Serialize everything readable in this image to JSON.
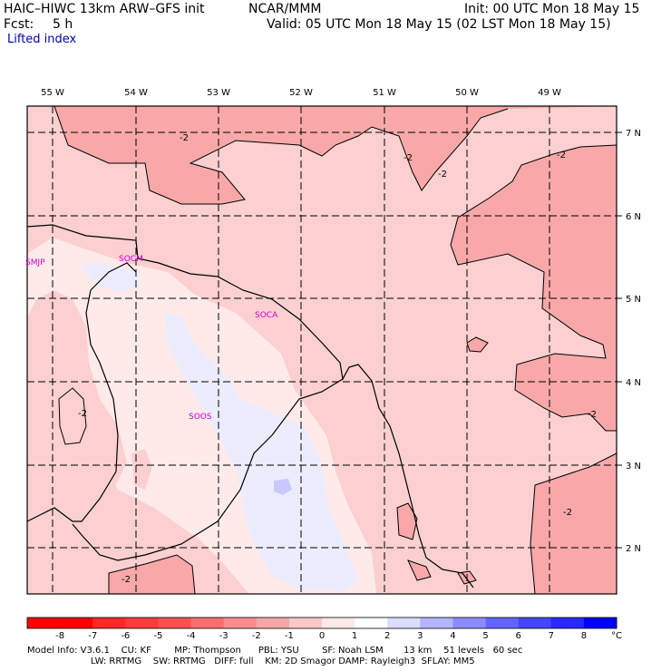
{
  "header": {
    "model": "HAIC–HIWC 13km ARW–GFS init",
    "center": "NCAR/MMM",
    "init": "Init: 00 UTC Mon 18 May 15",
    "fcst_label": "Fcst:",
    "fcst_value": "5 h",
    "valid": "Valid: 05 UTC Mon 18 May 15 (02 LST Mon 18 May 15)",
    "field": "Lifted index"
  },
  "map": {
    "lon_labels": [
      "55 W",
      "54 W",
      "53 W",
      "52 W",
      "51 W",
      "50 W",
      "49 W"
    ],
    "lat_labels": [
      "7 N",
      "6 N",
      "5 N",
      "4 N",
      "3 N",
      "2 N"
    ],
    "stations": [
      "SMJP",
      "SOCM",
      "SOCA",
      "SOOS"
    ],
    "contour_label": "-2"
  },
  "colorbar": {
    "labels": [
      "-8",
      "-7",
      "-6",
      "-5",
      "-4",
      "-3",
      "-2",
      "-1",
      "0",
      "1",
      "2",
      "3",
      "4",
      "5",
      "6",
      "7",
      "8"
    ],
    "unit": "°C",
    "colors": [
      "#ff0000",
      "#ff2828",
      "#ff3c3c",
      "#ff5050",
      "#fa6e6e",
      "#f88c8c",
      "#f6a6a6",
      "#fcc8c8",
      "#ffeaea",
      "#ffffff",
      "#dcdcff",
      "#b4b4ff",
      "#8c8cff",
      "#6464ff",
      "#4646ff",
      "#2828ff",
      "#0000ff"
    ]
  },
  "footer": {
    "line1": "Model Info: V3.6.1    CU: KF        MP: Thompson      PBL: YSU        SF: Noah LSM       13 km    51 levels   60 sec",
    "line2": "                      LW: RRTMG    SW: RRTMG   DIFF: full    KM: 2D Smagor DAMP: Rayleigh3  SFLAY: MM5"
  }
}
